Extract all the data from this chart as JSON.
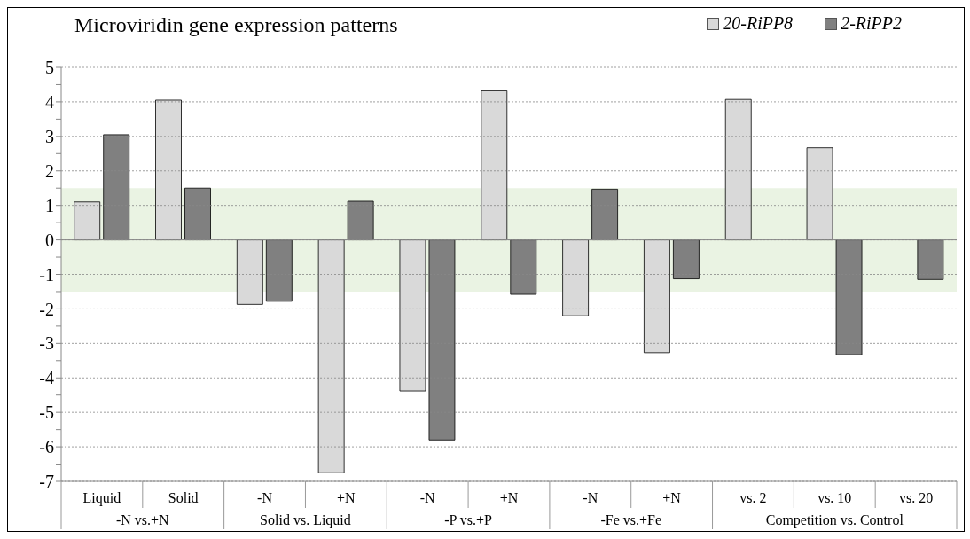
{
  "chart_data": {
    "type": "bar",
    "title": "Microviridin gene expression patterns",
    "categories": [
      "Liquid",
      "Solid",
      "-N",
      "+N",
      "-N",
      "+N",
      "-N",
      "+N",
      "vs. 2",
      "vs. 10",
      "vs. 20"
    ],
    "series": [
      {
        "name": "20-RiPP8",
        "color": "#d9d9d9",
        "values": [
          1.1,
          4.05,
          -1.87,
          -6.75,
          -4.38,
          4.32,
          -2.2,
          -3.27,
          4.07,
          2.67,
          null
        ]
      },
      {
        "name": "2-RiPP2",
        "color": "#808080",
        "values": [
          3.05,
          1.5,
          -1.78,
          1.12,
          -5.8,
          -1.58,
          1.47,
          -1.13,
          null,
          -3.33,
          -1.15
        ]
      }
    ],
    "annotations": [
      "-N vs.+N",
      "Solid vs. Liquid",
      "-P vs.+P",
      "-Fe vs.+Fe",
      "Competition vs. Control"
    ],
    "bands": [
      {
        "axis": "y",
        "from": -1.5,
        "to": 1.5,
        "color": "#d6e8c8"
      }
    ],
    "ylim": [
      -7,
      5
    ],
    "yticks": [
      -7,
      {
        "value": -6.5,
        "label": null
      },
      -6,
      {
        "value": -5.5,
        "label": null
      },
      -5,
      {
        "value": -4.5,
        "label": null
      },
      -4,
      {
        "value": -3.5,
        "label": null
      },
      -3,
      {
        "value": -2.5,
        "label": null
      },
      -2,
      {
        "value": -1.5,
        "label": null
      },
      -1,
      {
        "value": -0.5,
        "label": null
      },
      0,
      {
        "value": 0.5,
        "label": null
      },
      1,
      {
        "value": 1.5,
        "label": null
      },
      2,
      {
        "value": 2.5,
        "label": null
      },
      3,
      {
        "value": 3.5,
        "label": null
      },
      4,
      {
        "value": 4.5,
        "label": null
      },
      5
    ],
    "grid": "y",
    "legend": "top right"
  }
}
